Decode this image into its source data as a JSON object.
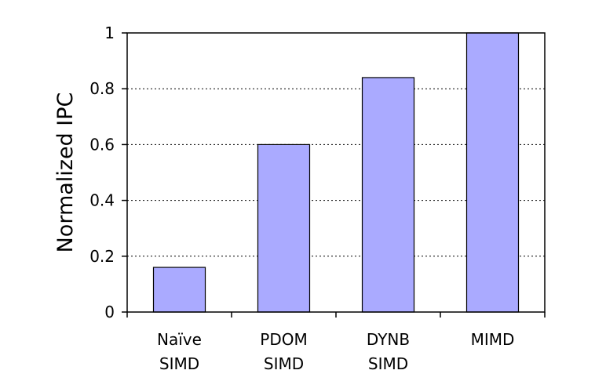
{
  "chart_data": {
    "type": "bar",
    "title": "",
    "xlabel": "",
    "ylabel": "Normalized IPC",
    "categories": [
      [
        "Naïve",
        "SIMD"
      ],
      [
        "PDOM",
        "SIMD"
      ],
      [
        "DYNB",
        "SIMD"
      ],
      [
        "MIMD"
      ]
    ],
    "values": [
      0.16,
      0.6,
      0.84,
      1.0
    ],
    "ylim": [
      0,
      1
    ],
    "yticks": [
      0,
      0.2,
      0.4,
      0.6,
      0.8,
      1
    ],
    "ytick_labels": [
      "0",
      "0.2",
      "0.4",
      "0.6",
      "0.8",
      "1"
    ],
    "grid": "horizontal dotted",
    "legend": "none",
    "colors": {
      "bar_fill": "#aaaaff",
      "bar_stroke": "#000000",
      "grid": "#000000",
      "axis": "#000000"
    }
  }
}
